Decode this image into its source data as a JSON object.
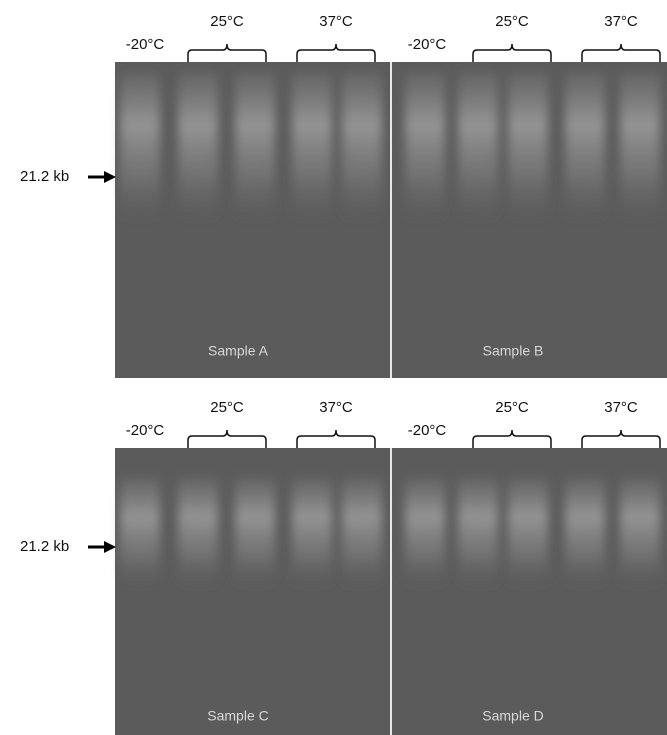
{
  "rows": [
    {
      "marker": "21.2 kb",
      "panels": [
        {
          "temperatures": [
            "-20°C",
            "25°C",
            "37°C"
          ],
          "sample": "Sample A"
        },
        {
          "temperatures": [
            "-20°C",
            "25°C",
            "37°C"
          ],
          "sample": "Sample B"
        }
      ]
    },
    {
      "marker": "21.2 kb",
      "panels": [
        {
          "temperatures": [
            "-20°C",
            "25°C",
            "37°C"
          ],
          "sample": "Sample C"
        },
        {
          "temperatures": [
            "-20°C",
            "25°C",
            "37°C"
          ],
          "sample": "Sample D"
        }
      ]
    }
  ]
}
